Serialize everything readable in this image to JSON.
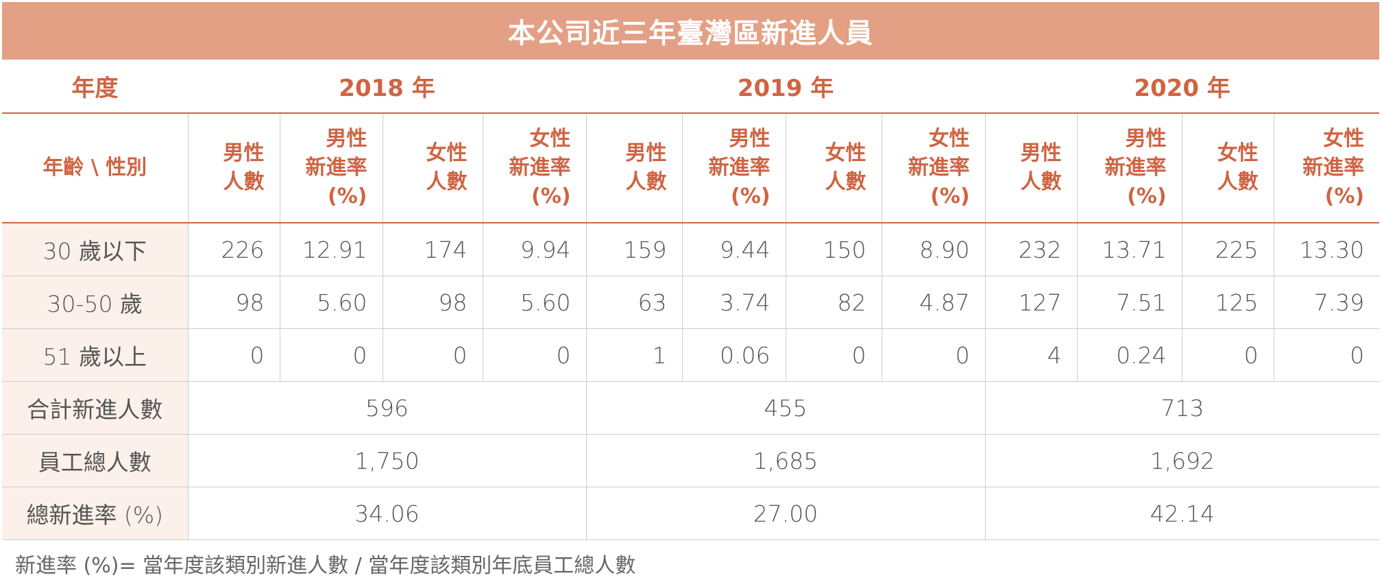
{
  "title": "本公司近三年臺灣區新進人員",
  "header": {
    "year_label": "年度",
    "years": [
      "2018 年",
      "2019 年",
      "2020 年"
    ],
    "age_gender_label": "年齡 \\ 性別",
    "col_male_count": [
      "男性",
      "人數"
    ],
    "col_male_rate": [
      "男性",
      "新進率",
      "(%)"
    ],
    "col_female_count": [
      "女性",
      "人數"
    ],
    "col_female_rate": [
      "女性",
      "新進率",
      "(%)"
    ]
  },
  "rows": [
    {
      "label": "30 歲以下",
      "values": [
        "226",
        "12.91",
        "174",
        "9.94",
        "159",
        "9.44",
        "150",
        "8.90",
        "232",
        "13.71",
        "225",
        "13.30"
      ]
    },
    {
      "label": "30-50 歲",
      "values": [
        "98",
        "5.60",
        "98",
        "5.60",
        "63",
        "3.74",
        "82",
        "4.87",
        "127",
        "7.51",
        "125",
        "7.39"
      ]
    },
    {
      "label": "51 歲以上",
      "values": [
        "0",
        "0",
        "0",
        "0",
        "1",
        "0.06",
        "0",
        "0",
        "4",
        "0.24",
        "0",
        "0"
      ]
    }
  ],
  "totals": [
    {
      "label": "合計新進人數",
      "values": [
        "596",
        "455",
        "713"
      ]
    },
    {
      "label": "員工總人數",
      "values": [
        "1,750",
        "1,685",
        "1,692"
      ]
    },
    {
      "label": "總新進率 (%)",
      "values": [
        "34.06",
        "27.00",
        "42.14"
      ]
    }
  ],
  "footnote": "新進率 (%)= 當年度該類別新進人數 / 當年度該類別年底員工總人數",
  "colors": {
    "title_bg": "#e3a085",
    "accent": "#cf6443",
    "row_header_bg": "#fcf1ea"
  }
}
